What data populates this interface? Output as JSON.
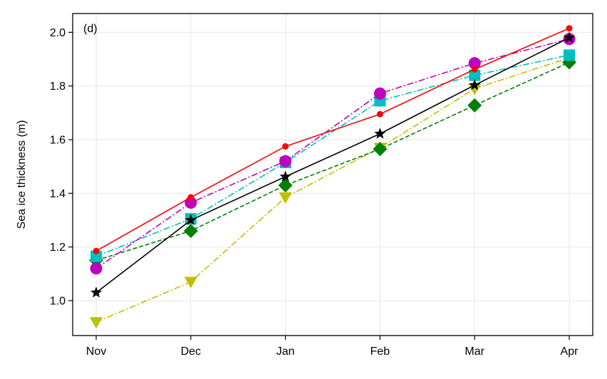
{
  "chart_data": {
    "type": "line",
    "panel_label": "(d)",
    "xlabel": "",
    "ylabel": "Sea ice thickness (m)",
    "categories": [
      "Nov",
      "Dec",
      "Jan",
      "Feb",
      "Mar",
      "Apr"
    ],
    "ylim": [
      0.87,
      2.07
    ],
    "yticks": [
      "1.0",
      "1.2",
      "1.4",
      "1.6",
      "1.8",
      "2.0"
    ],
    "grid": true,
    "series": [
      {
        "name": "yellow-triangle",
        "color": "#bfbf00",
        "marker": "triangle-down",
        "line_style": "dashdot",
        "values": [
          0.92,
          1.07,
          1.385,
          1.57,
          1.79,
          1.905
        ]
      },
      {
        "name": "green-diamond",
        "color": "#008000",
        "marker": "diamond",
        "line_style": "dashed",
        "values": [
          1.15,
          1.26,
          1.43,
          1.565,
          1.728,
          1.888
        ]
      },
      {
        "name": "cyan-square",
        "color": "#00bfbf",
        "marker": "square",
        "line_style": "dashdot",
        "values": [
          1.165,
          1.305,
          1.515,
          1.745,
          1.84,
          1.915
        ]
      },
      {
        "name": "magenta-circle",
        "color": "#bf00bf",
        "marker": "circle",
        "line_style": "dashdot",
        "values": [
          1.12,
          1.365,
          1.52,
          1.772,
          1.885,
          1.975
        ]
      },
      {
        "name": "red-dot",
        "color": "#ff0000",
        "marker": "small-circle",
        "line_style": "solid",
        "values": [
          1.185,
          1.385,
          1.575,
          1.695,
          1.862,
          2.015
        ]
      },
      {
        "name": "black-star",
        "color": "#000000",
        "marker": "star",
        "line_style": "solid",
        "values": [
          1.03,
          1.3,
          1.462,
          1.622,
          1.803,
          1.98
        ]
      }
    ]
  }
}
